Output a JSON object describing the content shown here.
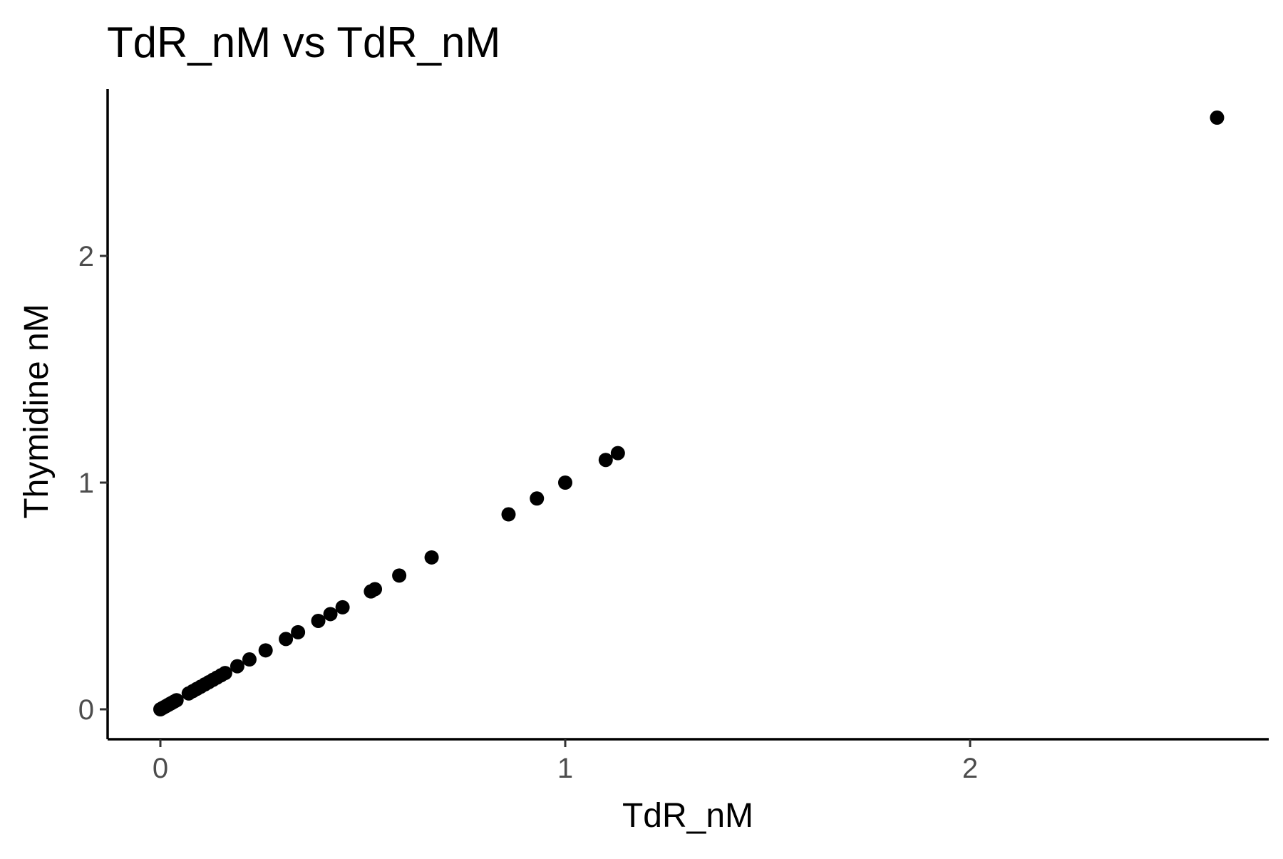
{
  "chart_data": {
    "type": "scatter",
    "title": "TdR_nM vs TdR_nM",
    "xlabel": "TdR_nM",
    "ylabel": "Thymidine nM",
    "xlim": [
      -0.13,
      2.72
    ],
    "ylim": [
      -0.13,
      2.75
    ],
    "x_ticks": [
      0,
      1,
      2
    ],
    "x_tick_labels": [
      "0",
      "1",
      "2"
    ],
    "y_ticks": [
      0,
      1,
      2
    ],
    "y_tick_labels": [
      "0",
      "1",
      "2"
    ],
    "grid": false,
    "legend": "none",
    "point_color": "#000000",
    "axis_color": "#000000",
    "tick_label_color": "#4d4d4d",
    "points": [
      {
        "x": 0.0,
        "y": 0.0
      },
      {
        "x": 0.005,
        "y": 0.005
      },
      {
        "x": 0.01,
        "y": 0.01
      },
      {
        "x": 0.015,
        "y": 0.015
      },
      {
        "x": 0.02,
        "y": 0.02
      },
      {
        "x": 0.025,
        "y": 0.025
      },
      {
        "x": 0.03,
        "y": 0.03
      },
      {
        "x": 0.035,
        "y": 0.035
      },
      {
        "x": 0.04,
        "y": 0.04
      },
      {
        "x": 0.07,
        "y": 0.07
      },
      {
        "x": 0.08,
        "y": 0.08
      },
      {
        "x": 0.09,
        "y": 0.09
      },
      {
        "x": 0.1,
        "y": 0.1
      },
      {
        "x": 0.11,
        "y": 0.11
      },
      {
        "x": 0.12,
        "y": 0.12
      },
      {
        "x": 0.13,
        "y": 0.13
      },
      {
        "x": 0.14,
        "y": 0.14
      },
      {
        "x": 0.15,
        "y": 0.15
      },
      {
        "x": 0.16,
        "y": 0.16
      },
      {
        "x": 0.19,
        "y": 0.19
      },
      {
        "x": 0.22,
        "y": 0.22
      },
      {
        "x": 0.26,
        "y": 0.26
      },
      {
        "x": 0.31,
        "y": 0.31
      },
      {
        "x": 0.34,
        "y": 0.34
      },
      {
        "x": 0.39,
        "y": 0.39
      },
      {
        "x": 0.42,
        "y": 0.42
      },
      {
        "x": 0.45,
        "y": 0.45
      },
      {
        "x": 0.52,
        "y": 0.52
      },
      {
        "x": 0.53,
        "y": 0.53
      },
      {
        "x": 0.59,
        "y": 0.59
      },
      {
        "x": 0.67,
        "y": 0.67
      },
      {
        "x": 0.86,
        "y": 0.86
      },
      {
        "x": 0.93,
        "y": 0.93
      },
      {
        "x": 1.0,
        "y": 1.0
      },
      {
        "x": 1.1,
        "y": 1.1
      },
      {
        "x": 1.13,
        "y": 1.13
      },
      {
        "x": 2.61,
        "y": 2.61
      }
    ]
  }
}
